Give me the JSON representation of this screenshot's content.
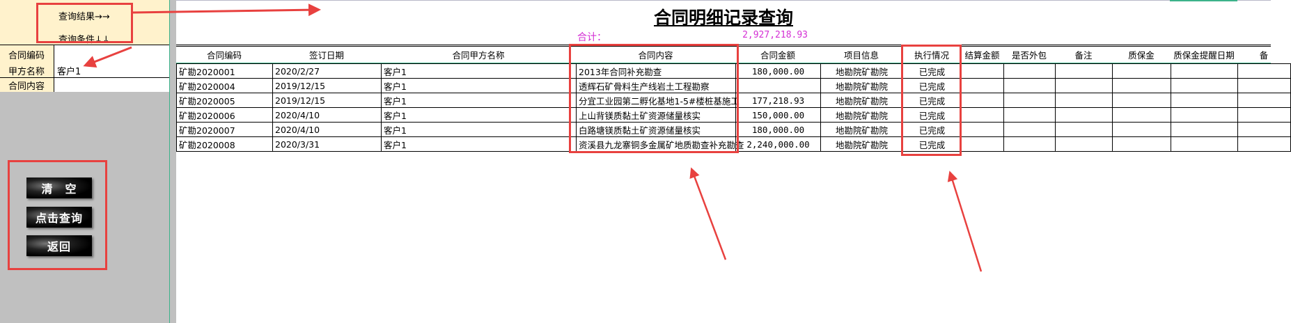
{
  "left_panel": {
    "nav_result": "查询结果→→",
    "nav_condition": "查询条件↓↓",
    "fields": [
      {
        "label": "合同编码",
        "value": ""
      },
      {
        "label": "甲方名称",
        "value": "客户1"
      },
      {
        "label": "合同内容",
        "value": ""
      }
    ],
    "buttons": {
      "clear": "清　空",
      "query": "点击查询",
      "back": "返回"
    }
  },
  "main": {
    "title": "合同明细记录查询",
    "total_label": "合计：",
    "total_value": "2,927,218.93",
    "columns": [
      "合同编码",
      "签订日期",
      "合同甲方名称",
      "合同内容",
      "合同金额",
      "项目信息",
      "执行情况",
      "结算金额",
      "是否外包",
      "备注",
      "质保金",
      "质保金提醒日期",
      "备"
    ],
    "rows": [
      [
        "矿勘2020001",
        "2020/2/27",
        "客户1",
        "2013年合同补充勘查",
        "180,000.00",
        "地勘院矿勘院",
        "已完成",
        "",
        "",
        "",
        "",
        "",
        ""
      ],
      [
        "矿勘2020004",
        "2019/12/15",
        "客户1",
        "透辉石矿骨料生产线岩土工程勘察",
        "",
        "地勘院矿勘院",
        "已完成",
        "",
        "",
        "",
        "",
        "",
        ""
      ],
      [
        "矿勘2020005",
        "2019/12/15",
        "客户1",
        "分宜工业园第二孵化基地1-5#楼桩基施工",
        "177,218.93",
        "地勘院矿勘院",
        "已完成",
        "",
        "",
        "",
        "",
        "",
        ""
      ],
      [
        "矿勘2020006",
        "2020/4/10",
        "客户1",
        "上山背镁质黏土矿资源储量核实",
        "150,000.00",
        "地勘院矿勘院",
        "已完成",
        "",
        "",
        "",
        "",
        "",
        ""
      ],
      [
        "矿勘2020007",
        "2020/4/10",
        "客户1",
        "白路塘镁质黏土矿资源储量核实",
        "180,000.00",
        "地勘院矿勘院",
        "已完成",
        "",
        "",
        "",
        "",
        "",
        ""
      ],
      [
        "矿勘2020008",
        "2020/3/31",
        "客户1",
        "资溪县九龙寨铜多金属矿地质勘查补充勘查",
        "2,240,000.00",
        "地勘院矿勘院",
        "已完成",
        "",
        "",
        "",
        "",
        "",
        ""
      ]
    ]
  },
  "colors": {
    "highlight": "#e8413f",
    "total": "#d42fd4",
    "panel": "#fff2cc",
    "background": "#c0c0c0"
  }
}
